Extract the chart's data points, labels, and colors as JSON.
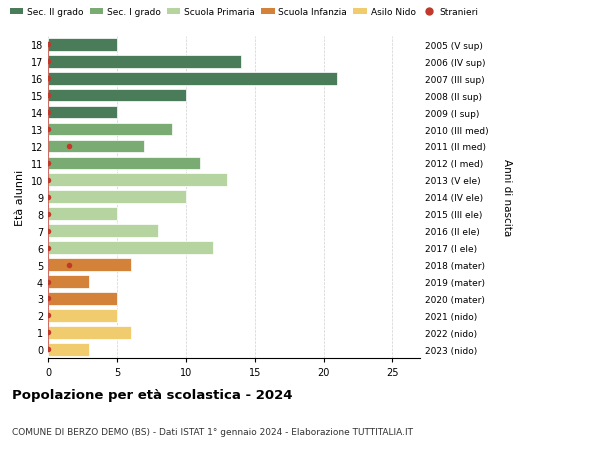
{
  "ages": [
    18,
    17,
    16,
    15,
    14,
    13,
    12,
    11,
    10,
    9,
    8,
    7,
    6,
    5,
    4,
    3,
    2,
    1,
    0
  ],
  "values": [
    5,
    14,
    21,
    10,
    5,
    9,
    7,
    11,
    13,
    10,
    5,
    8,
    12,
    6,
    3,
    5,
    5,
    6,
    3
  ],
  "right_labels": [
    "2005 (V sup)",
    "2006 (IV sup)",
    "2007 (III sup)",
    "2008 (II sup)",
    "2009 (I sup)",
    "2010 (III med)",
    "2011 (II med)",
    "2012 (I med)",
    "2013 (V ele)",
    "2014 (IV ele)",
    "2015 (III ele)",
    "2016 (II ele)",
    "2017 (I ele)",
    "2018 (mater)",
    "2019 (mater)",
    "2020 (mater)",
    "2021 (nido)",
    "2022 (nido)",
    "2023 (nido)"
  ],
  "bar_colors": [
    "#4a7c59",
    "#4a7c59",
    "#4a7c59",
    "#4a7c59",
    "#4a7c59",
    "#7aab72",
    "#7aab72",
    "#7aab72",
    "#b5d4a0",
    "#b5d4a0",
    "#b5d4a0",
    "#b5d4a0",
    "#b5d4a0",
    "#d4813a",
    "#d4813a",
    "#d4813a",
    "#f0cc6e",
    "#f0cc6e",
    "#f0cc6e"
  ],
  "stranieri_color": "#c0392b",
  "stranieri_positions": [
    18,
    17,
    16,
    15,
    14,
    13,
    11,
    10,
    9,
    8,
    7,
    6,
    4,
    3,
    2,
    1,
    0
  ],
  "stranieri_offset": {
    "12": 1.5,
    "5": 1.5
  },
  "title": "Popolazione per età scolastica - 2024",
  "subtitle": "COMUNE DI BERZO DEMO (BS) - Dati ISTAT 1° gennaio 2024 - Elaborazione TUTTITALIA.IT",
  "ylabel": "Età alunni",
  "right_ylabel": "Anni di nascita",
  "legend_labels": [
    "Sec. II grado",
    "Sec. I grado",
    "Scuola Primaria",
    "Scuola Infanzia",
    "Asilo Nido",
    "Stranieri"
  ],
  "legend_colors": [
    "#4a7c59",
    "#7aab72",
    "#b5d4a0",
    "#d4813a",
    "#f0cc6e",
    "#c0392b"
  ],
  "bg_color": "#ffffff",
  "grid_color": "#cccccc"
}
